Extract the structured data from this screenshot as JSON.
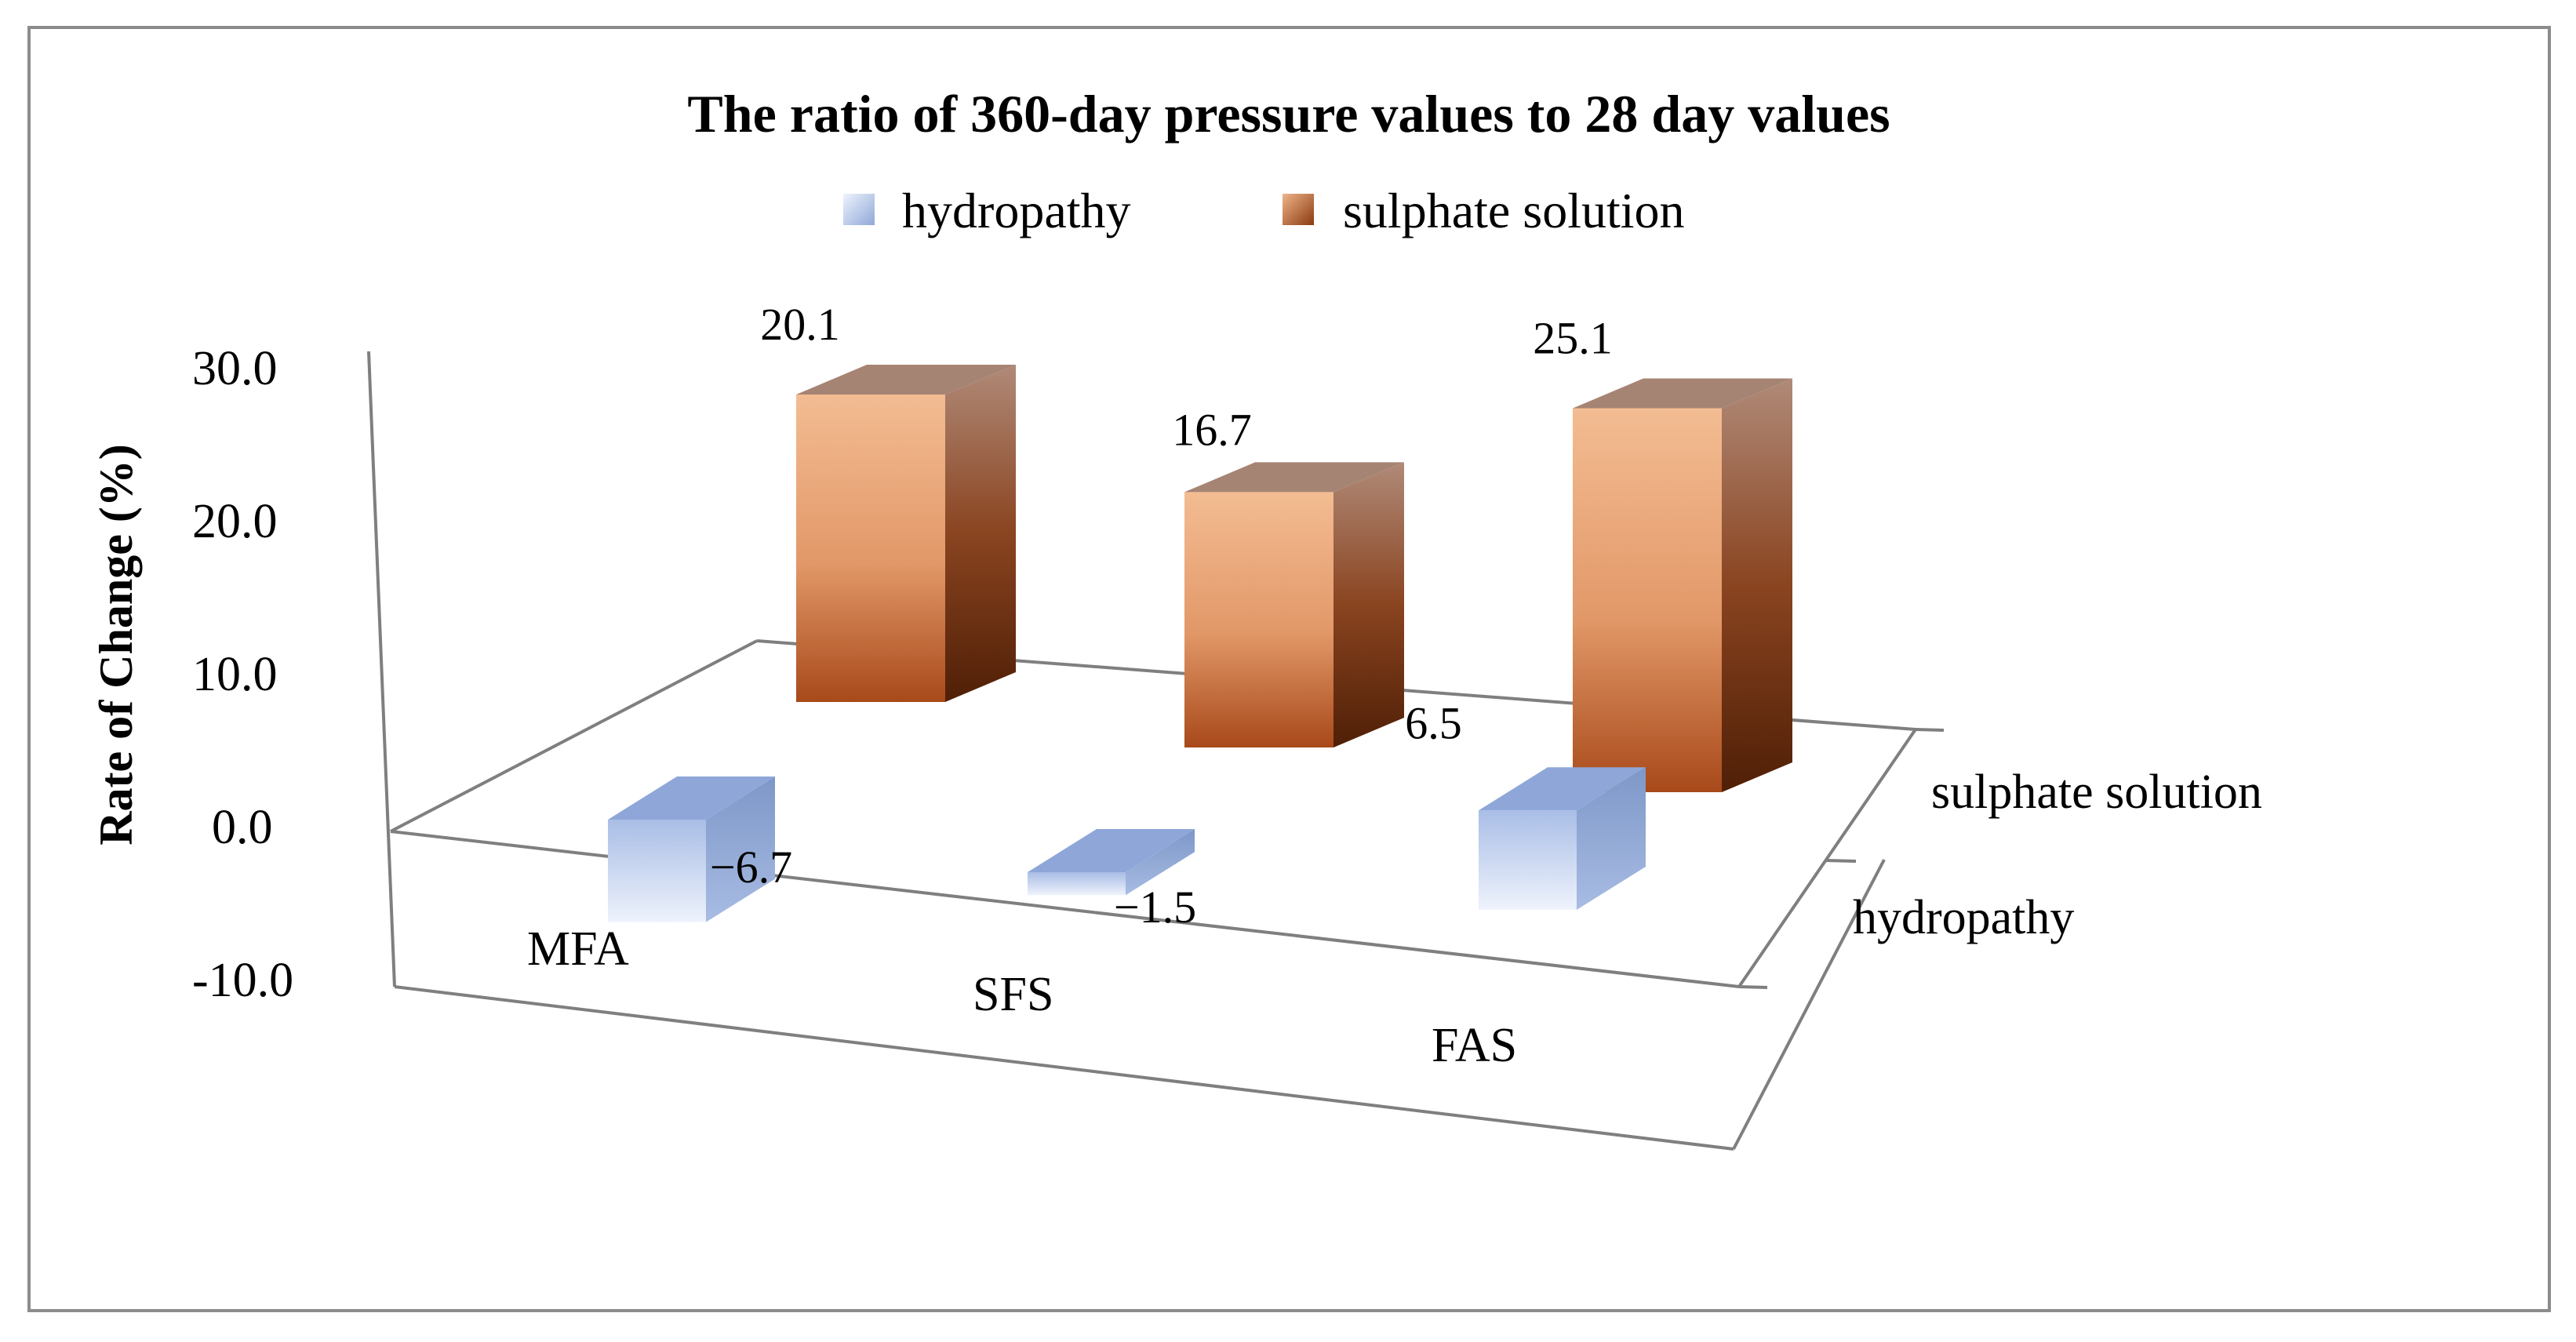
{
  "chart_data": {
    "type": "bar",
    "title": "The ratio of 360-day pressure values to 28 day values",
    "ylabel": "Rate of Change  (%)",
    "xlabel": "",
    "categories": [
      "MFA",
      "SFS",
      "FAS"
    ],
    "series": [
      {
        "name": "hydropathy",
        "values": [
          -6.7,
          -1.5,
          6.5
        ],
        "labels": [
          "−6.7",
          "−1.5",
          "6.5"
        ]
      },
      {
        "name": "sulphate solution",
        "values": [
          20.1,
          16.7,
          25.1
        ],
        "labels": [
          "20.1",
          "16.7",
          "25.1"
        ]
      }
    ],
    "yticks": [
      "30.0",
      "20.0",
      "10.0",
      "0.0",
      "-10.0"
    ],
    "ylim": [
      -10,
      30
    ],
    "depth_labels": [
      "sulphate solution",
      "hydropathy"
    ],
    "legend_position": "top",
    "grid": false
  },
  "colors": {
    "hydropathy_light": "#eef3fc",
    "hydropathy_mid": "#b7c9ea",
    "hydropathy_dark": "#8ba3d0",
    "hydropathy_top": "#8fa8d8",
    "sulphate_light": "#f0b488",
    "sulphate_mid": "#d9824f",
    "sulphate_dark": "#7a3510",
    "sulphate_top": "#a58070",
    "axis": "#7f7f7f",
    "text": "#000000",
    "border": "#8c8c8c"
  }
}
